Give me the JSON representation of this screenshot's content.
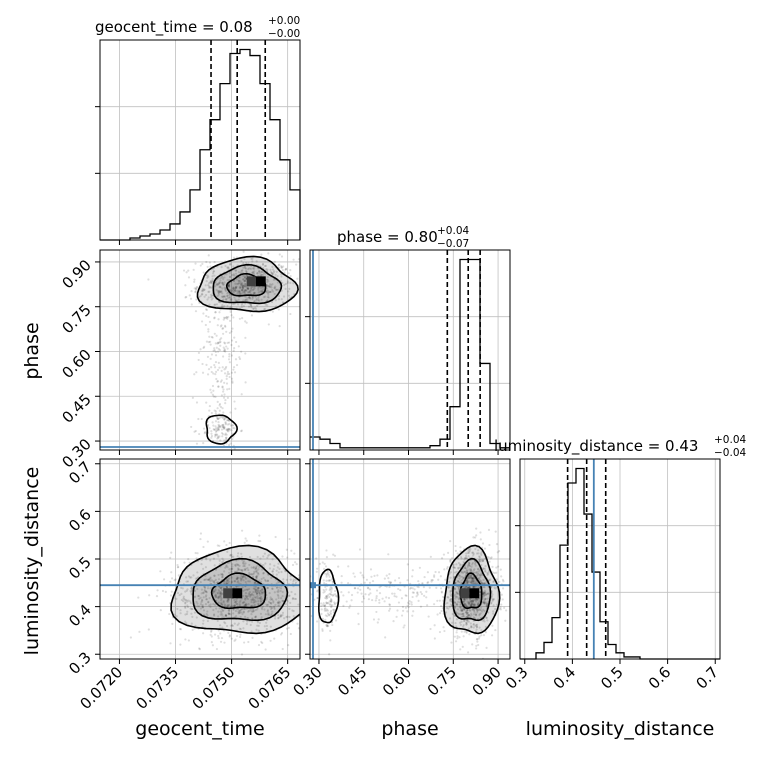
{
  "chart_data": {
    "type": "corner",
    "grid": true,
    "truth_color": "#4682b4",
    "truth": {
      "geocent_time": null,
      "phase": 0.28,
      "luminosity_distance": 0.445
    },
    "parameters": [
      {
        "name": "geocent_time",
        "xlabel": "geocent_time",
        "range": [
          0.07148,
          0.07683
        ],
        "ticks": [
          "0.0720",
          "0.0735",
          "0.0750",
          "0.0765"
        ],
        "tick_values": [
          0.072,
          0.0735,
          0.075,
          0.0765
        ],
        "title": {
          "prefix": "geocent_time = 0.08",
          "plus": "+0.00",
          "minus": "−0.00"
        },
        "quantile_lines": [
          0.07445,
          0.07515,
          0.0759
        ],
        "hist": {
          "edges_start": 0.07148,
          "bin_width": 0.0002675,
          "counts": [
            0,
            0,
            0,
            1,
            2,
            3,
            5,
            8,
            14,
            25,
            45,
            60,
            78,
            93,
            95,
            92,
            78,
            60,
            40,
            25,
            0
          ]
        }
      },
      {
        "name": "phase",
        "ylabel": "phase",
        "xlabel": "phase",
        "range": [
          0.27,
          0.94
        ],
        "ticks": [
          "0.30",
          "0.45",
          "0.60",
          "0.75",
          "0.90"
        ],
        "tick_values": [
          0.3,
          0.45,
          0.6,
          0.75,
          0.9
        ],
        "title": {
          "prefix": "phase = 0.80",
          "plus": "+0.04",
          "minus": "−0.07"
        },
        "quantile_lines": [
          0.73,
          0.8,
          0.84
        ],
        "hist": {
          "edges_start": 0.27,
          "bin_width": 0.0335,
          "counts": [
            6,
            5,
            3,
            1,
            1,
            1,
            1,
            1,
            1,
            1,
            1,
            1,
            2,
            5,
            20,
            88,
            88,
            40,
            3,
            1
          ]
        }
      },
      {
        "name": "luminosity_distance",
        "ylabel": "luminosity_distance",
        "xlabel": "luminosity_distance",
        "range": [
          0.29,
          0.71
        ],
        "ticks": [
          "0.3",
          "0.4",
          "0.5",
          "0.6",
          "0.7"
        ],
        "tick_values": [
          0.3,
          0.4,
          0.5,
          0.6,
          0.7
        ],
        "title": {
          "prefix": "luminosity_distance = 0.43",
          "plus": "+0.04",
          "minus": "−0.04"
        },
        "quantile_lines": [
          0.39,
          0.43,
          0.47
        ],
        "hist": {
          "edges_start": 0.29,
          "bin_width": 0.0168,
          "counts": [
            0,
            0,
            3,
            8,
            20,
            55,
            85,
            92,
            70,
            42,
            18,
            7,
            3,
            1,
            1,
            0,
            0,
            0,
            0,
            0,
            0,
            0,
            0,
            0,
            0
          ]
        }
      }
    ],
    "scatter_blobs": {
      "0_1": [
        {
          "cx": 0.0754,
          "cy": 0.82,
          "sx": 0.00065,
          "sy": 0.045,
          "n": 700,
          "peak": [
            0.07578,
            0.835
          ]
        },
        {
          "cx": 0.0747,
          "cy": 0.6,
          "sx": 0.0003,
          "sy": 0.16,
          "n": 250
        },
        {
          "cx": 0.0747,
          "cy": 0.34,
          "sx": 0.00025,
          "sy": 0.03,
          "n": 120
        }
      ],
      "0_2": [
        {
          "cx": 0.0752,
          "cy": 0.43,
          "sx": 0.0009,
          "sy": 0.045,
          "n": 1100,
          "peak": [
            0.07515,
            0.428
          ]
        }
      ],
      "1_2": [
        {
          "cx": 0.81,
          "cy": 0.43,
          "sx": 0.045,
          "sy": 0.045,
          "n": 900,
          "peak": [
            0.82,
            0.428
          ]
        },
        {
          "cx": 0.33,
          "cy": 0.42,
          "sx": 0.02,
          "sy": 0.035,
          "n": 150
        },
        {
          "cx": 0.58,
          "cy": 0.43,
          "sx": 0.16,
          "sy": 0.03,
          "n": 250
        }
      ]
    }
  }
}
